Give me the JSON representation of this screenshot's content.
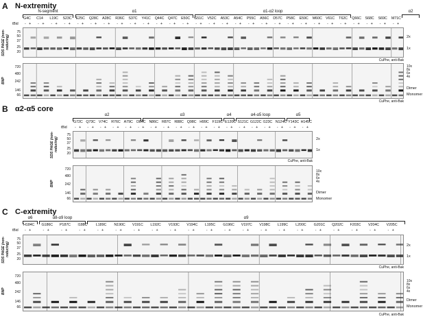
{
  "panels": [
    {
      "label": "A",
      "title": "N-extremity",
      "segments": [
        "N-segment",
        "α1",
        "α1-α2 loop",
        "α2"
      ],
      "mutants": [
        "G4C",
        "C14",
        "L19C",
        "S23C",
        "E25C",
        "Q28C",
        "A28C",
        "R36C",
        "S37C",
        "Y41C",
        "Q44C",
        "Q47C",
        "E50C",
        "G51C",
        "V52C",
        "A53C",
        "A54C",
        "P55C",
        "A56C",
        "D57C",
        "P58C",
        "E59C",
        "M60C",
        "V61C",
        "T62C",
        "Q66C",
        "S68C",
        "S69C",
        "M71C"
      ],
      "sds_markers": [
        "75",
        "50",
        "37",
        "25",
        "20"
      ],
      "bnp_markers": [
        "720",
        "480",
        "242",
        "146",
        "66"
      ],
      "sds_bands": [
        "2x",
        "1x"
      ],
      "bnp_bands": [
        "10x",
        "8x",
        "6x",
        "4x",
        "Dimer",
        "Monomer"
      ],
      "sds_label": "SDS PAGE (non-reducing)",
      "bnp_label": "BNP",
      "condition": "CuPhe, anti-Bak"
    },
    {
      "label": "B",
      "title": "α2-α5 core",
      "segments": [
        "α2",
        "α3",
        "α4",
        "α4-α5 loop",
        "α5"
      ],
      "mutants": [
        "G72C",
        "Q73C",
        "V74C",
        "R76C",
        "A79C",
        "D84C",
        "N86C",
        "R87C",
        "R88C",
        "Q98C",
        "H99C",
        "F119C",
        "E120C",
        "S121C",
        "G122C",
        "I123C",
        "N124C",
        "Y143C",
        "H145C"
      ],
      "sds_markers": [
        "75",
        "50",
        "37",
        "25",
        "20"
      ],
      "bnp_markers": [
        "720",
        "480",
        "242",
        "146",
        "66"
      ],
      "sds_bands": [
        "2x",
        "1x"
      ],
      "bnp_bands": [
        "10x",
        "8x",
        "6x",
        "4x",
        "Dimer",
        "Monomer"
      ],
      "sds_label": "SDS PAGE (non-reducing)",
      "bnp_label": "BNP",
      "condition": "CuPhe, anti-Bak"
    },
    {
      "label": "C",
      "title": "C-extremity",
      "segments": [
        "α6",
        "α8-α9 loop",
        "α9"
      ],
      "mutants": [
        "H184C",
        "G186C",
        "P187C",
        "I188C",
        "L189C",
        "N190C",
        "V191C",
        "L192C",
        "V193C",
        "V194C",
        "L195C",
        "G196C",
        "V197C",
        "V198C",
        "L199C",
        "L200C",
        "G201C",
        "Q202C",
        "F203C",
        "V204C",
        "V205C"
      ],
      "sds_markers": [
        "75",
        "50",
        "37",
        "25",
        "20"
      ],
      "bnp_markers": [
        "720",
        "480",
        "242",
        "146",
        "66"
      ],
      "sds_bands": [
        "2x",
        "1x"
      ],
      "bnp_bands": [
        "10x",
        "8x",
        "6x",
        "4x",
        "Dimer",
        "Monomer"
      ],
      "sds_label": "SDS PAGE (non-reducing)",
      "bnp_label": "BNP",
      "condition": "CuPhe, anti-Bak"
    }
  ],
  "tbid_label": "tBid",
  "pm_pair": "- +"
}
